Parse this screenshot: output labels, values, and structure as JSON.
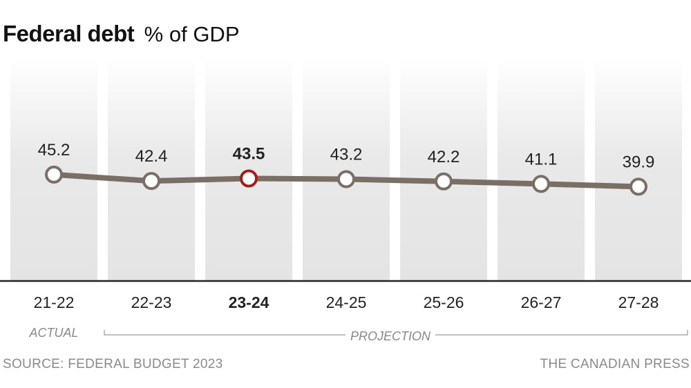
{
  "title": "Federal debt",
  "subtitle": "% of GDP",
  "source": "SOURCE: FEDERAL BUDGET 2023",
  "credit": "THE CANADIAN PRESS",
  "chart_data": {
    "type": "line",
    "title": "Federal debt",
    "subtitle": "% of GDP",
    "categories": [
      "21-22",
      "22-23",
      "23-24",
      "24-25",
      "25-26",
      "26-27",
      "27-28"
    ],
    "series": [
      {
        "values": [
          45.2,
          42.4,
          43.5,
          43.2,
          42.2,
          41.1,
          39.9
        ]
      }
    ],
    "data_labels": [
      "45.2",
      "42.4",
      "43.5",
      "43.2",
      "42.2",
      "41.1",
      "39.9"
    ],
    "highlight_index": 2,
    "annotations": {
      "actual_label": "ACTUAL",
      "projection_label": "PROJECTION"
    },
    "ylim": [
      0,
      100
    ],
    "grid": false,
    "colors": {
      "line": "#7a6f67",
      "marker_fill": "#ffffff",
      "highlight_marker": "#a01e1e",
      "column_shade": "#e4e4e4",
      "axis": "#222222",
      "annotation": "#888888"
    }
  }
}
